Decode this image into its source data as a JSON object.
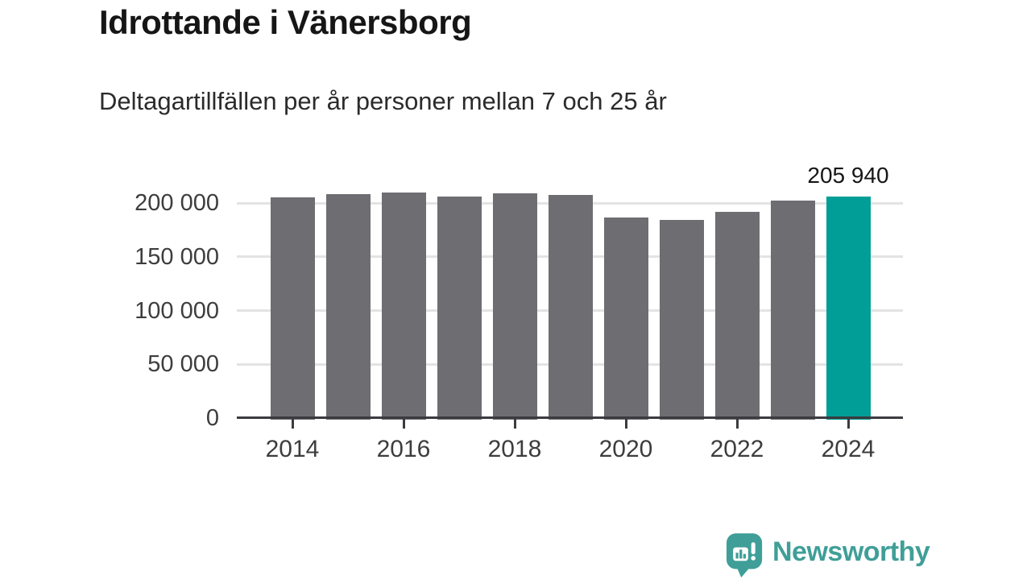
{
  "header": {
    "title": "Idrottande i Vänersborg",
    "subtitle": "Deltagartillfällen per år personer mellan 7 och 25 år"
  },
  "chart_data": {
    "type": "bar",
    "title": "Idrottande i Vänersborg",
    "subtitle": "Deltagartillfällen per år personer mellan 7 och 25 år",
    "x": [
      2014,
      2015,
      2016,
      2017,
      2018,
      2019,
      2020,
      2021,
      2022,
      2023,
      2024
    ],
    "values": [
      205000,
      208500,
      210000,
      206000,
      209000,
      207500,
      186500,
      184000,
      192000,
      202000,
      205940
    ],
    "xticks": [
      "2014",
      "2016",
      "2018",
      "2020",
      "2022",
      "2024"
    ],
    "yticks": [
      {
        "value": 0,
        "label": "0"
      },
      {
        "value": 50000,
        "label": "50 000"
      },
      {
        "value": 100000,
        "label": "100 000"
      },
      {
        "value": 150000,
        "label": "150 000"
      },
      {
        "value": 200000,
        "label": "200 000"
      }
    ],
    "ylim": [
      0,
      220000
    ],
    "grid": true,
    "legend": false,
    "xlabel": "",
    "ylabel": "",
    "highlight_index": 10,
    "annotation": {
      "text": "205 940",
      "x": 2024,
      "value": 205940
    },
    "bar_color": "#6d6d72",
    "highlight_color": "#009e96",
    "gridline_color": "#e3e3e3",
    "axis_color": "#3b3b40"
  },
  "footer": {
    "brand": "Newsworthy",
    "brand_color": "#3f9f98"
  }
}
